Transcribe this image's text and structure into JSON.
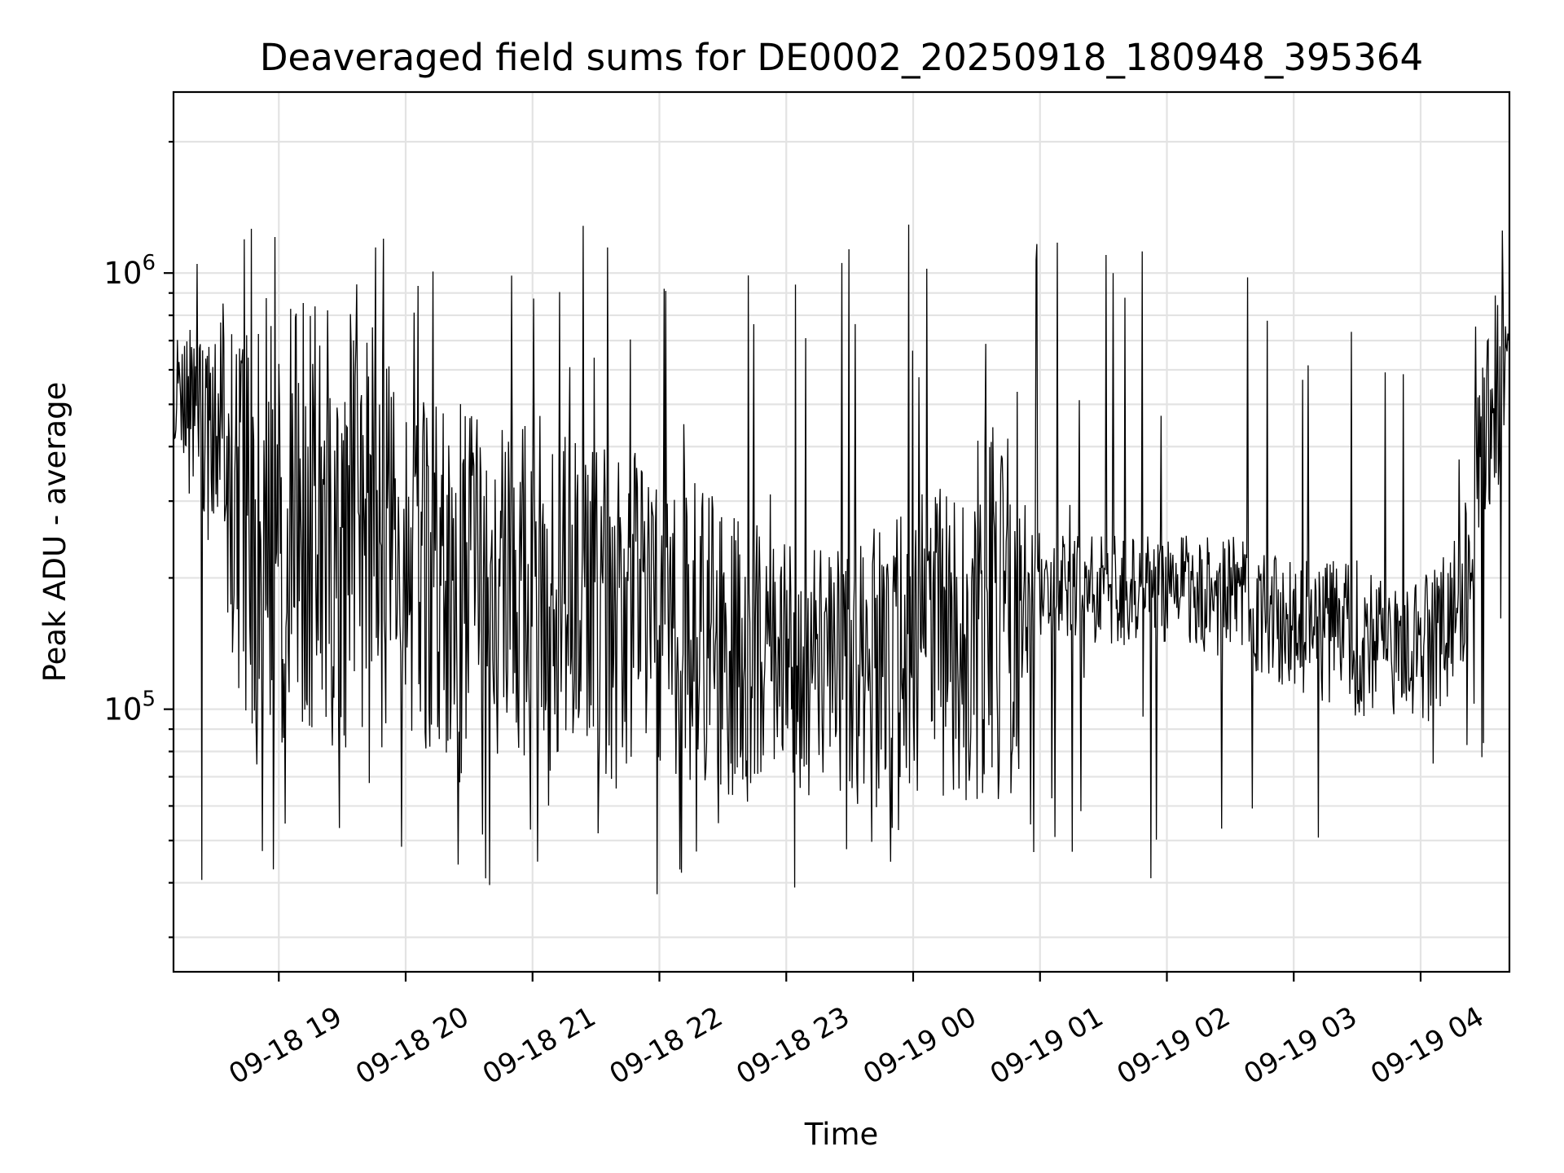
{
  "chart_data": {
    "type": "line",
    "title": "Deaveraged field sums for DE0002_20250918_180948_395364",
    "xlabel": "Time",
    "ylabel": "Peak ADU - average",
    "yscale": "log",
    "ylim": [
      25000,
      2600000
    ],
    "ytick_major": [
      {
        "value": 100000,
        "base": "10",
        "exp": "5"
      },
      {
        "value": 1000000,
        "base": "10",
        "exp": "6"
      }
    ],
    "xlim_hours": [
      -0.83,
      9.7
    ],
    "x_ticks": [
      {
        "hour": 0,
        "label": "09-18 19"
      },
      {
        "hour": 1,
        "label": "09-18 20"
      },
      {
        "hour": 2,
        "label": "09-18 21"
      },
      {
        "hour": 3,
        "label": "09-18 22"
      },
      {
        "hour": 4,
        "label": "09-18 23"
      },
      {
        "hour": 5,
        "label": "09-19 00"
      },
      {
        "hour": 6,
        "label": "09-19 01"
      },
      {
        "hour": 7,
        "label": "09-19 02"
      },
      {
        "hour": 8,
        "label": "09-19 03"
      },
      {
        "hour": 9,
        "label": "09-19 04"
      }
    ],
    "series": [
      {
        "name": "field sums",
        "color": "#000000",
        "x_start_hours": -0.83,
        "x_end_hours": 9.7,
        "n_points": 1700,
        "envelope_hours": [
          -0.83,
          -0.6,
          -0.4,
          -0.2,
          0.0,
          0.3,
          0.6,
          0.9,
          1.2,
          1.5,
          2.0,
          2.5,
          3.0,
          3.5,
          4.0,
          4.5,
          5.0,
          5.5,
          5.8,
          6.0,
          6.5,
          7.0,
          7.5,
          8.0,
          8.5,
          9.0,
          9.3,
          9.5,
          9.7
        ],
        "envelope_low": [
          400000,
          250000,
          130000,
          85000,
          80000,
          90000,
          90000,
          80000,
          75000,
          70000,
          70000,
          65000,
          65000,
          62000,
          60000,
          60000,
          62000,
          60000,
          60000,
          140000,
          140000,
          140000,
          130000,
          110000,
          95000,
          90000,
          110000,
          250000,
          400000
        ],
        "envelope_high": [
          800000,
          700000,
          850000,
          900000,
          900000,
          850000,
          800000,
          600000,
          550000,
          500000,
          450000,
          400000,
          380000,
          300000,
          250000,
          250000,
          300000,
          450000,
          450000,
          250000,
          250000,
          250000,
          250000,
          220000,
          220000,
          200000,
          250000,
          700000,
          1000000
        ],
        "spike_max": 1300000,
        "dip_min": 37000
      }
    ]
  }
}
